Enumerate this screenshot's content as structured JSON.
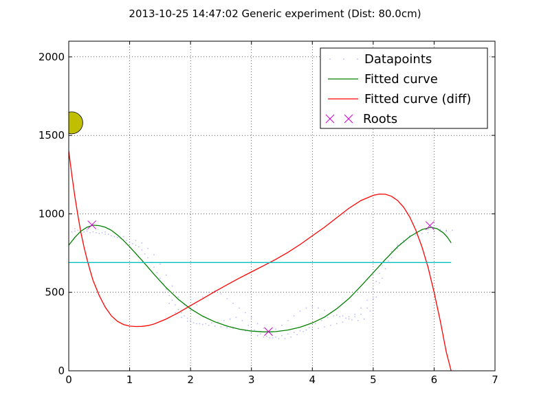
{
  "chart_data": {
    "type": "scatter",
    "title": "2013-10-25 14:47:02 Generic experiment (Dist: 80.0cm)",
    "xlabel": "",
    "ylabel": "",
    "xlim": [
      0,
      7
    ],
    "ylim": [
      0,
      2100
    ],
    "xticks": [
      0,
      1,
      2,
      3,
      4,
      5,
      6,
      7
    ],
    "yticks": [
      0,
      500,
      1000,
      1500,
      2000
    ],
    "grid": true,
    "legend_position": "top-right",
    "series": [
      {
        "name": "Datapoints",
        "kind": "scatter",
        "color": "#8080ff",
        "points": [
          [
            0.0,
            880
          ],
          [
            0.05,
            885
          ],
          [
            0.1,
            890
          ],
          [
            0.15,
            895
          ],
          [
            0.2,
            890
          ],
          [
            0.25,
            885
          ],
          [
            0.3,
            890
          ],
          [
            0.35,
            880
          ],
          [
            0.4,
            885
          ],
          [
            0.45,
            880
          ],
          [
            0.5,
            875
          ],
          [
            0.55,
            880
          ],
          [
            0.6,
            870
          ],
          [
            0.65,
            870
          ],
          [
            0.7,
            860
          ],
          [
            0.75,
            855
          ],
          [
            0.8,
            850
          ],
          [
            0.85,
            845
          ],
          [
            0.9,
            835
          ],
          [
            0.95,
            830
          ],
          [
            1.0,
            820
          ],
          [
            1.05,
            810
          ],
          [
            1.1,
            800
          ],
          [
            1.15,
            790
          ],
          [
            1.2,
            770
          ],
          [
            1.25,
            745
          ],
          [
            1.3,
            720
          ],
          [
            1.35,
            690
          ],
          [
            1.4,
            660
          ],
          [
            1.45,
            625
          ],
          [
            1.5,
            590
          ],
          [
            1.55,
            555
          ],
          [
            1.6,
            520
          ],
          [
            1.65,
            480
          ],
          [
            1.7,
            450
          ],
          [
            1.75,
            420
          ],
          [
            1.8,
            390
          ],
          [
            1.85,
            370
          ],
          [
            1.9,
            350
          ],
          [
            1.95,
            335
          ],
          [
            2.0,
            320
          ],
          [
            2.1,
            300
          ],
          [
            2.2,
            295
          ],
          [
            2.3,
            290
          ],
          [
            2.4,
            285
          ],
          [
            2.5,
            280
          ],
          [
            2.6,
            275
          ],
          [
            2.7,
            270
          ],
          [
            2.8,
            265
          ],
          [
            2.9,
            255
          ],
          [
            3.0,
            240
          ],
          [
            3.1,
            225
          ],
          [
            3.2,
            215
          ],
          [
            3.3,
            210
          ],
          [
            3.4,
            215
          ],
          [
            3.5,
            225
          ],
          [
            3.6,
            235
          ],
          [
            3.7,
            245
          ],
          [
            3.8,
            255
          ],
          [
            3.9,
            260
          ],
          [
            4.0,
            265
          ],
          [
            4.1,
            270
          ],
          [
            4.2,
            280
          ],
          [
            4.3,
            290
          ],
          [
            4.4,
            300
          ],
          [
            4.5,
            310
          ],
          [
            4.6,
            330
          ],
          [
            4.7,
            360
          ],
          [
            4.8,
            400
          ],
          [
            4.9,
            450
          ],
          [
            5.0,
            520
          ],
          [
            5.05,
            570
          ],
          [
            5.1,
            620
          ],
          [
            5.15,
            670
          ],
          [
            5.2,
            710
          ],
          [
            5.3,
            760
          ],
          [
            5.4,
            800
          ],
          [
            5.5,
            830
          ],
          [
            5.6,
            850
          ],
          [
            5.7,
            865
          ],
          [
            5.8,
            875
          ],
          [
            5.9,
            880
          ],
          [
            6.0,
            885
          ],
          [
            6.1,
            890
          ],
          [
            6.2,
            890
          ],
          [
            6.3,
            895
          ],
          [
            0.1,
            905
          ],
          [
            0.3,
            900
          ],
          [
            0.6,
            885
          ],
          [
            0.9,
            855
          ],
          [
            1.1,
            830
          ],
          [
            1.2,
            815
          ],
          [
            1.3,
            780
          ],
          [
            1.4,
            740
          ],
          [
            1.5,
            680
          ],
          [
            1.6,
            610
          ],
          [
            1.7,
            540
          ],
          [
            1.8,
            470
          ],
          [
            1.9,
            420
          ],
          [
            2.0,
            400
          ],
          [
            2.1,
            420
          ],
          [
            2.2,
            470
          ],
          [
            2.3,
            500
          ],
          [
            2.4,
            510
          ],
          [
            2.5,
            490
          ],
          [
            2.6,
            460
          ],
          [
            2.7,
            430
          ],
          [
            2.8,
            400
          ],
          [
            2.9,
            370
          ],
          [
            3.0,
            340
          ],
          [
            3.1,
            300
          ],
          [
            3.2,
            270
          ],
          [
            3.3,
            250
          ],
          [
            3.4,
            265
          ],
          [
            3.5,
            290
          ],
          [
            3.6,
            320
          ],
          [
            3.7,
            350
          ],
          [
            3.8,
            380
          ],
          [
            3.9,
            400
          ],
          [
            4.0,
            410
          ],
          [
            4.1,
            400
          ],
          [
            4.2,
            385
          ],
          [
            4.3,
            370
          ],
          [
            4.4,
            355
          ],
          [
            4.5,
            350
          ],
          [
            4.6,
            345
          ],
          [
            4.7,
            345
          ],
          [
            4.8,
            360
          ],
          [
            4.9,
            400
          ],
          [
            5.0,
            460
          ],
          [
            5.1,
            560
          ],
          [
            5.2,
            650
          ],
          [
            5.3,
            720
          ],
          [
            5.4,
            780
          ],
          [
            5.5,
            820
          ],
          [
            5.6,
            860
          ],
          [
            5.7,
            880
          ],
          [
            5.8,
            895
          ],
          [
            5.9,
            900
          ],
          [
            6.0,
            905
          ],
          [
            6.1,
            900
          ],
          [
            6.2,
            895
          ],
          [
            1.55,
            500
          ],
          [
            1.65,
            430
          ],
          [
            1.75,
            370
          ],
          [
            1.85,
            340
          ],
          [
            1.95,
            315
          ],
          [
            2.05,
            305
          ],
          [
            2.15,
            300
          ],
          [
            2.25,
            300
          ],
          [
            2.35,
            305
          ],
          [
            2.45,
            310
          ],
          [
            2.55,
            320
          ],
          [
            2.65,
            330
          ],
          [
            2.75,
            340
          ],
          [
            2.85,
            320
          ],
          [
            2.95,
            290
          ],
          [
            3.05,
            260
          ],
          [
            3.15,
            235
          ],
          [
            3.25,
            220
          ],
          [
            3.35,
            210
          ],
          [
            3.45,
            205
          ],
          [
            3.55,
            205
          ],
          [
            3.65,
            215
          ],
          [
            3.75,
            230
          ],
          [
            3.85,
            250
          ],
          [
            3.95,
            275
          ],
          [
            4.05,
            300
          ],
          [
            4.15,
            320
          ],
          [
            4.25,
            340
          ],
          [
            4.35,
            350
          ],
          [
            4.45,
            345
          ],
          [
            4.55,
            335
          ],
          [
            4.65,
            325
          ],
          [
            4.75,
            320
          ],
          [
            4.85,
            330
          ],
          [
            4.95,
            380
          ],
          [
            5.05,
            470
          ],
          [
            5.15,
            590
          ],
          [
            5.25,
            700
          ],
          [
            5.35,
            770
          ],
          [
            5.45,
            810
          ]
        ]
      },
      {
        "name": "Fitted curve",
        "kind": "line",
        "color": "#008000",
        "points": [
          [
            0.0,
            800
          ],
          [
            0.1,
            850
          ],
          [
            0.2,
            890
          ],
          [
            0.3,
            915
          ],
          [
            0.4,
            928
          ],
          [
            0.5,
            925
          ],
          [
            0.6,
            915
          ],
          [
            0.7,
            895
          ],
          [
            0.8,
            865
          ],
          [
            0.9,
            830
          ],
          [
            1.0,
            790
          ],
          [
            1.2,
            705
          ],
          [
            1.4,
            615
          ],
          [
            1.6,
            530
          ],
          [
            1.8,
            455
          ],
          [
            2.0,
            395
          ],
          [
            2.2,
            348
          ],
          [
            2.4,
            312
          ],
          [
            2.6,
            285
          ],
          [
            2.8,
            265
          ],
          [
            3.0,
            253
          ],
          [
            3.2,
            248
          ],
          [
            3.3,
            248
          ],
          [
            3.4,
            250
          ],
          [
            3.6,
            260
          ],
          [
            3.8,
            278
          ],
          [
            4.0,
            305
          ],
          [
            4.2,
            342
          ],
          [
            4.4,
            395
          ],
          [
            4.6,
            460
          ],
          [
            4.8,
            540
          ],
          [
            5.0,
            625
          ],
          [
            5.2,
            710
          ],
          [
            5.4,
            790
          ],
          [
            5.6,
            855
          ],
          [
            5.8,
            900
          ],
          [
            5.95,
            915
          ],
          [
            6.05,
            905
          ],
          [
            6.15,
            880
          ],
          [
            6.22,
            850
          ],
          [
            6.28,
            815
          ]
        ]
      },
      {
        "name": "Fitted curve (diff)",
        "kind": "line",
        "color": "#ff0000",
        "points": [
          [
            0.0,
            1400
          ],
          [
            0.05,
            1250
          ],
          [
            0.1,
            1110
          ],
          [
            0.15,
            990
          ],
          [
            0.2,
            880
          ],
          [
            0.25,
            790
          ],
          [
            0.3,
            710
          ],
          [
            0.35,
            640
          ],
          [
            0.4,
            575
          ],
          [
            0.5,
            480
          ],
          [
            0.6,
            405
          ],
          [
            0.7,
            350
          ],
          [
            0.8,
            315
          ],
          [
            0.9,
            295
          ],
          [
            1.0,
            285
          ],
          [
            1.1,
            282
          ],
          [
            1.2,
            283
          ],
          [
            1.3,
            288
          ],
          [
            1.4,
            298
          ],
          [
            1.6,
            330
          ],
          [
            1.8,
            370
          ],
          [
            2.0,
            415
          ],
          [
            2.2,
            460
          ],
          [
            2.4,
            505
          ],
          [
            2.6,
            548
          ],
          [
            2.8,
            590
          ],
          [
            3.0,
            630
          ],
          [
            3.2,
            670
          ],
          [
            3.4,
            710
          ],
          [
            3.6,
            755
          ],
          [
            3.8,
            805
          ],
          [
            4.0,
            860
          ],
          [
            4.2,
            915
          ],
          [
            4.4,
            975
          ],
          [
            4.6,
            1035
          ],
          [
            4.8,
            1085
          ],
          [
            5.0,
            1118
          ],
          [
            5.1,
            1126
          ],
          [
            5.2,
            1125
          ],
          [
            5.3,
            1112
          ],
          [
            5.4,
            1085
          ],
          [
            5.5,
            1042
          ],
          [
            5.6,
            980
          ],
          [
            5.7,
            895
          ],
          [
            5.8,
            790
          ],
          [
            5.9,
            660
          ],
          [
            6.0,
            500
          ],
          [
            6.1,
            320
          ],
          [
            6.2,
            120
          ],
          [
            6.28,
            0
          ]
        ]
      },
      {
        "name": "Roots",
        "kind": "marker-x",
        "color": "#cc00cc",
        "points": [
          [
            0.38,
            930
          ],
          [
            3.28,
            250
          ],
          [
            5.93,
            925
          ]
        ]
      },
      {
        "name": "",
        "kind": "hline",
        "color": "#00bfbf",
        "points": [
          [
            0.0,
            690
          ],
          [
            6.28,
            690
          ]
        ]
      },
      {
        "name": "",
        "kind": "circle-marker",
        "color": "#bfbf00",
        "points": [
          [
            0.05,
            1580
          ]
        ]
      }
    ]
  }
}
